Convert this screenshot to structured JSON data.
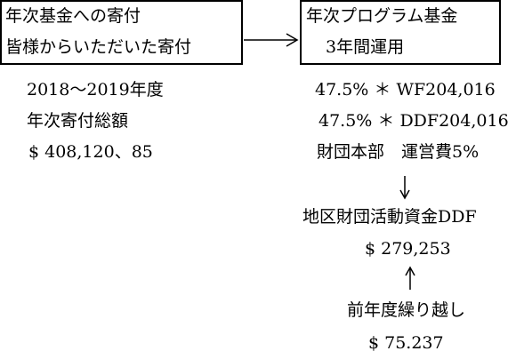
{
  "left_box": {
    "lines": [
      "年次基金への寄付",
      "皆様からいただいた寄付"
    ]
  },
  "right_box": {
    "lines": [
      "年次プログラム基金",
      "3年間運用"
    ]
  },
  "left_details": [
    "2018～2019年度",
    "年次寄付総額",
    "$ 408,120、85"
  ],
  "right_details": [
    "47.5% ＊ WF204,016",
    "47.5% ＊ DDF204,016",
    "財団本部　運営費5%"
  ],
  "district_fund": {
    "label": "地区財団活動資金DDF",
    "amount": "$ 279,253"
  },
  "carryover": {
    "label": "前年度繰り越し",
    "amount": "$ 75.237"
  }
}
